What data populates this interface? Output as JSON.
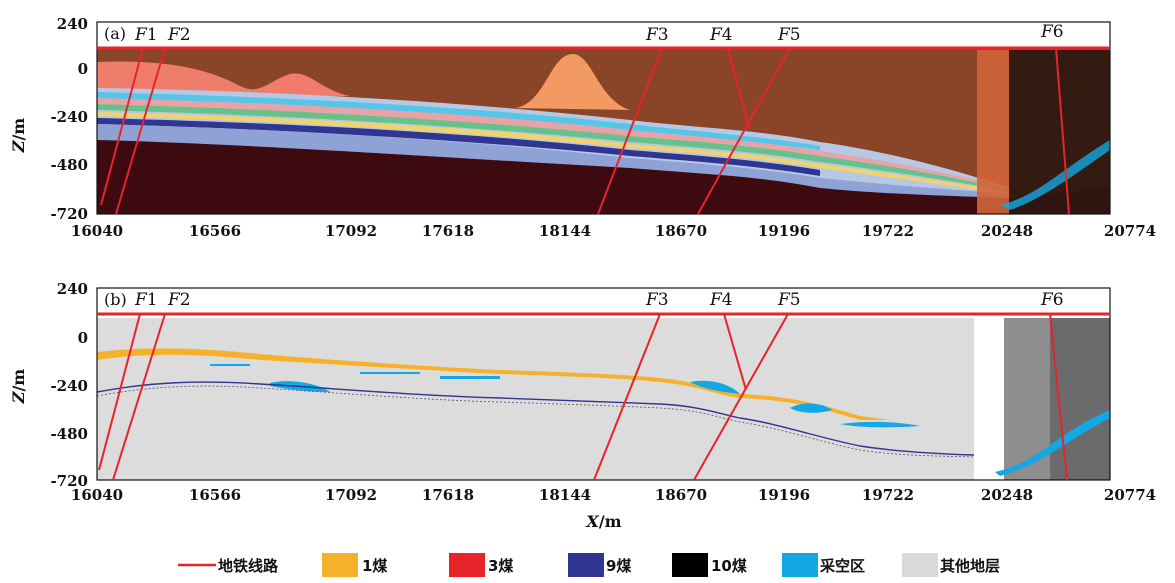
{
  "x_axis": {
    "ticks": [
      "16040",
      "16566",
      "17092",
      "17618",
      "18144",
      "18670",
      "19196",
      "19722",
      "20248",
      "20774"
    ],
    "label_var": "X",
    "label_unit": "/m"
  },
  "y_axis": {
    "ticks": [
      "240",
      "0",
      "-240",
      "-480",
      "-720"
    ],
    "label_var": "Z",
    "label_unit": "/m"
  },
  "panels": [
    {
      "label": "(a)"
    },
    {
      "label": "(b)"
    }
  ],
  "faults": [
    {
      "prefix": "F",
      "num": "1"
    },
    {
      "prefix": "F",
      "num": "2"
    },
    {
      "prefix": "F",
      "num": "3"
    },
    {
      "prefix": "F",
      "num": "4"
    },
    {
      "prefix": "F",
      "num": "5"
    },
    {
      "prefix": "F",
      "num": "6"
    }
  ],
  "legend": [
    {
      "label": "地铁线路",
      "color": "#e8232a",
      "kind": "line"
    },
    {
      "label": "1煤",
      "color": "#f6b12c",
      "kind": "box"
    },
    {
      "label": "3煤",
      "color": "#e8232a",
      "kind": "box"
    },
    {
      "label": "9煤",
      "color": "#2f3590",
      "kind": "box"
    },
    {
      "label": "10煤",
      "color": "#000000",
      "kind": "box"
    },
    {
      "label": "采空区",
      "color": "#14a7e3",
      "kind": "box"
    },
    {
      "label": "其他地层",
      "color": "#d9d9d9",
      "kind": "box"
    }
  ],
  "colors": {
    "rail": "#e8232a",
    "fault": "#e8232a",
    "topsoil": "#8a4528",
    "base_rock": "#3d0a10",
    "other_strata": "#dcdcdc",
    "coal1": "#f6b12c",
    "coal9": "#2f3590",
    "goaf": "#14a7e3"
  }
}
